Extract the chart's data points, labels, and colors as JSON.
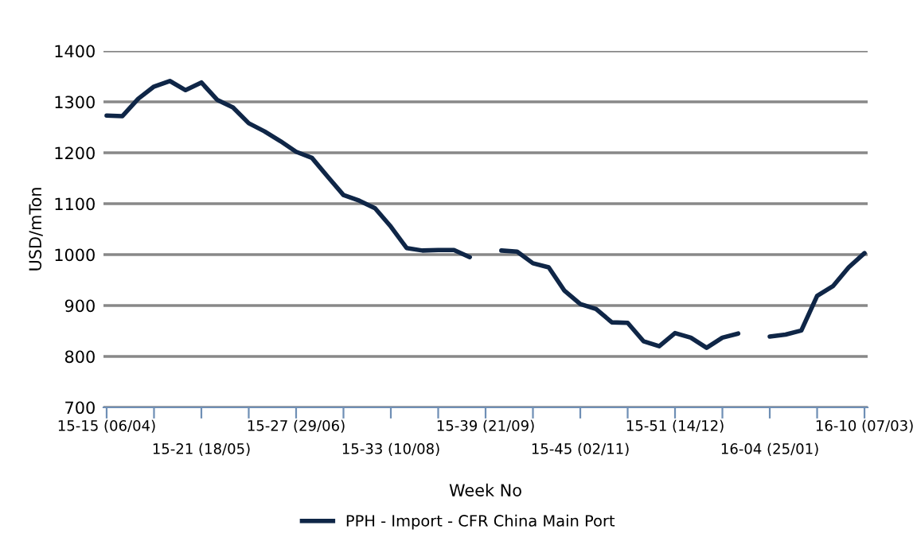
{
  "chart_data": {
    "type": "line",
    "xlabel": "Week No",
    "ylabel": "USD/mTon",
    "categories": [
      "15-15 (06/04)",
      null,
      null,
      null,
      null,
      null,
      "15-21 (18/05)",
      null,
      null,
      null,
      null,
      null,
      "15-27 (29/06)",
      null,
      null,
      null,
      null,
      null,
      "15-33 (10/08)",
      null,
      null,
      null,
      null,
      null,
      "15-39 (21/09)",
      null,
      null,
      null,
      null,
      null,
      "15-45 (02/11)",
      null,
      null,
      null,
      null,
      null,
      "15-51 (14/12)",
      null,
      null,
      null,
      null,
      null,
      "16-04 (25/01)",
      null,
      null,
      null,
      null,
      null,
      "16-10 (07/03)"
    ],
    "series": [
      {
        "name": "PPH - Import - CFR China Main Port",
        "color": "#0f2647",
        "values": [
          1273,
          1272,
          1306,
          1330,
          1341,
          1323,
          1338,
          1304,
          1289,
          1258,
          1242,
          1223,
          1202,
          1190,
          1153,
          1117,
          1106,
          1091,
          1055,
          1013,
          1008,
          1009,
          1009,
          995,
          null,
          1008,
          1006,
          983,
          975,
          929,
          903,
          893,
          867,
          866,
          830,
          820,
          846,
          837,
          817,
          837,
          845,
          null,
          839,
          843,
          851,
          919,
          938,
          975,
          1003
        ]
      }
    ],
    "ylim": [
      700,
      1400
    ],
    "yticks": [
      700,
      800,
      900,
      1000,
      1100,
      1200,
      1300,
      1400
    ],
    "grid": "y",
    "legend": "bottom",
    "marker": "none",
    "line_style": "solid"
  }
}
